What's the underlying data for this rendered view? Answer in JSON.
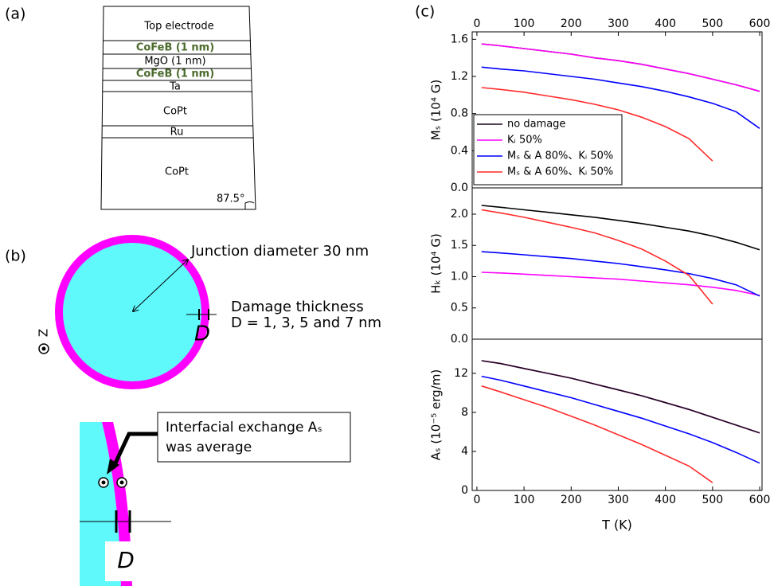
{
  "panels": {
    "a": "(a)",
    "b": "(b)",
    "c": "(c)"
  },
  "stack": {
    "layers": [
      "Top electrode",
      "CoFeB (1 nm)",
      "MgO (1 nm)",
      "CoFeB (1 nm)",
      "Ta",
      "CoPt",
      "Ru",
      "CoPt"
    ],
    "angle": "87.5°"
  },
  "junction": {
    "diameter_label": "Junction diameter 30 nm",
    "damage_label": "Damage thickness",
    "d_label": "D = 1, 3, 5 and 7 nm",
    "d_symbol": "D",
    "z": "Z"
  },
  "zoom": {
    "note_line1": "Interfacial exchange Aₛ",
    "note_line2": "was average",
    "d_symbol": "D"
  },
  "chart_data": [
    {
      "type": "line",
      "ylabel": "Mₛ (10⁴ G)",
      "legend": "lower left",
      "x": [
        10,
        50,
        100,
        150,
        200,
        250,
        300,
        350,
        400,
        450,
        500,
        550,
        600
      ],
      "xlim": [
        -10,
        605
      ],
      "xticks": [
        0,
        100,
        200,
        300,
        400,
        500,
        600
      ],
      "ylim": [
        0,
        1.68
      ],
      "yticks": [
        {
          "value": 0,
          "label": "0.0"
        },
        0.4,
        0.8,
        1.2,
        1.6
      ],
      "series": [
        {
          "name": "no damage",
          "color": "#1a0618",
          "values": [
            1.55,
            1.53,
            1.5,
            1.47,
            1.44,
            1.4,
            1.37,
            1.33,
            1.28,
            1.23,
            1.17,
            1.11,
            1.04
          ]
        },
        {
          "name": "Kᵢ 50%",
          "color": "#ff00ff",
          "values": [
            1.55,
            1.53,
            1.5,
            1.47,
            1.44,
            1.4,
            1.37,
            1.33,
            1.28,
            1.23,
            1.17,
            1.11,
            1.04
          ]
        },
        {
          "name": "Mₛ & A 80%、Kᵢ 50%",
          "color": "#0000ff",
          "values": [
            1.3,
            1.28,
            1.26,
            1.23,
            1.2,
            1.17,
            1.13,
            1.09,
            1.04,
            0.98,
            0.91,
            0.82,
            0.64
          ]
        },
        {
          "name": "Mₛ & A 60%、Kᵢ 50%",
          "color": "#ff2a2a",
          "values": [
            1.08,
            1.06,
            1.03,
            0.99,
            0.95,
            0.9,
            0.84,
            0.76,
            0.66,
            0.53,
            0.29,
            null,
            null
          ]
        }
      ]
    },
    {
      "type": "line",
      "ylabel": "Hₖ (10⁴ G)",
      "x": [
        10,
        50,
        100,
        150,
        200,
        250,
        300,
        350,
        400,
        450,
        500,
        550,
        600
      ],
      "xlim": [
        -10,
        605
      ],
      "ylim": [
        0,
        2.42
      ],
      "yticks": [
        {
          "value": 0,
          "label": "0.0"
        },
        0.5,
        {
          "value": 1,
          "label": "1.0"
        },
        1.5,
        {
          "value": 2,
          "label": "2.0"
        }
      ],
      "series": [
        {
          "color": "#000000",
          "values": [
            2.14,
            2.11,
            2.07,
            2.03,
            1.99,
            1.95,
            1.9,
            1.85,
            1.79,
            1.73,
            1.65,
            1.55,
            1.43
          ]
        },
        {
          "color": "#ff00ff",
          "values": [
            1.07,
            1.06,
            1.04,
            1.02,
            1.0,
            0.98,
            0.96,
            0.93,
            0.9,
            0.87,
            0.83,
            0.78,
            0.7
          ]
        },
        {
          "color": "#0000ff",
          "values": [
            1.4,
            1.38,
            1.35,
            1.32,
            1.29,
            1.25,
            1.21,
            1.16,
            1.11,
            1.05,
            0.97,
            0.87,
            0.69
          ]
        },
        {
          "color": "#ff2a2a",
          "values": [
            2.07,
            2.02,
            1.95,
            1.87,
            1.79,
            1.7,
            1.58,
            1.44,
            1.25,
            1.02,
            0.56,
            null,
            null
          ]
        }
      ]
    },
    {
      "type": "line",
      "ylabel": "Aₛ (10⁻⁵ erg/m)",
      "xlabel": "T (K)",
      "x": [
        10,
        50,
        100,
        150,
        200,
        250,
        300,
        350,
        400,
        450,
        500,
        550,
        600
      ],
      "xlim": [
        -10,
        605
      ],
      "xticks": [
        0,
        100,
        200,
        300,
        400,
        500,
        600
      ],
      "ylim": [
        0,
        15.5
      ],
      "yticks": [
        0,
        4,
        8,
        12
      ],
      "series": [
        {
          "color": "#ff00ff",
          "values": [
            13.3,
            13.0,
            12.5,
            12.0,
            11.5,
            10.9,
            10.3,
            9.7,
            9.0,
            8.3,
            7.5,
            6.7,
            5.9
          ]
        },
        {
          "color": "#1a0618",
          "values": [
            13.3,
            13.0,
            12.5,
            12.0,
            11.5,
            10.9,
            10.3,
            9.7,
            9.0,
            8.3,
            7.5,
            6.7,
            5.9
          ]
        },
        {
          "color": "#0000ff",
          "values": [
            11.7,
            11.3,
            10.7,
            10.1,
            9.5,
            8.8,
            8.1,
            7.4,
            6.6,
            5.8,
            4.9,
            3.9,
            2.8
          ]
        },
        {
          "color": "#ff2a2a",
          "values": [
            10.7,
            10.1,
            9.3,
            8.5,
            7.6,
            6.7,
            5.7,
            4.7,
            3.6,
            2.5,
            0.8,
            null,
            null
          ]
        }
      ]
    }
  ]
}
